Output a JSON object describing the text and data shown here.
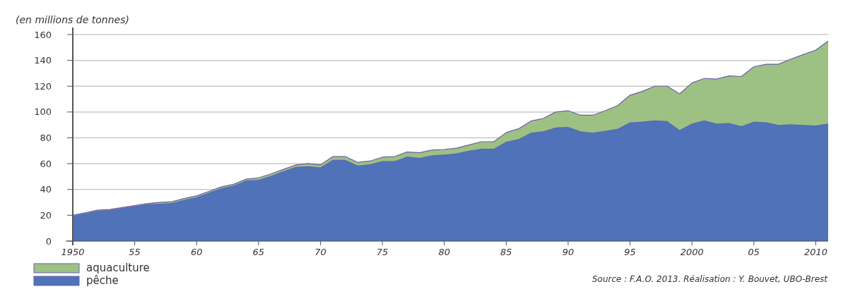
{
  "chart_data": {
    "type": "area",
    "stacked": true,
    "ylabel": "(en millions de tonnes)",
    "x": [
      1950,
      1951,
      1952,
      1953,
      1954,
      1955,
      1956,
      1957,
      1958,
      1959,
      1960,
      1961,
      1962,
      1963,
      1964,
      1965,
      1966,
      1967,
      1968,
      1969,
      1970,
      1971,
      1972,
      1973,
      1974,
      1975,
      1976,
      1977,
      1978,
      1979,
      1980,
      1981,
      1982,
      1983,
      1984,
      1985,
      1986,
      1987,
      1988,
      1989,
      1990,
      1991,
      1992,
      1993,
      1994,
      1995,
      1996,
      1997,
      1998,
      1999,
      2000,
      2001,
      2002,
      2003,
      2004,
      2005,
      2006,
      2007,
      2008,
      2009,
      2010,
      2011
    ],
    "series": [
      {
        "name": "pêche",
        "color": "#4f72b8",
        "values": [
          19.5,
          21.5,
          23.5,
          24,
          25.5,
          27,
          28.5,
          29,
          29.5,
          32,
          34,
          37.5,
          41,
          43,
          47,
          47.5,
          50.5,
          54,
          57.5,
          58,
          57,
          63,
          63,
          58.5,
          59.5,
          62,
          62,
          65.5,
          64.5,
          66.5,
          67,
          68,
          70,
          71.5,
          71.5,
          77,
          79,
          84,
          85,
          88,
          88.5,
          85,
          84,
          85.5,
          87,
          92,
          92.5,
          93.5,
          93,
          86,
          91,
          93.5,
          91,
          91.5,
          89,
          92.5,
          92,
          90,
          90.5,
          90,
          89.5,
          91
        ]
      },
      {
        "name": "aquaculture",
        "color": "#9dc183",
        "values": [
          0.5,
          0.5,
          0.5,
          0.5,
          0.5,
          0.5,
          0.5,
          1,
          1,
          1,
          1,
          1,
          1,
          1,
          1,
          1.5,
          1.5,
          1.5,
          1.5,
          2,
          2,
          2.5,
          2.5,
          2.5,
          2.5,
          3,
          3.5,
          3.5,
          4,
          4,
          4,
          4,
          4.5,
          5.5,
          5.5,
          7,
          8,
          9,
          10,
          12,
          12.5,
          12.5,
          13.5,
          15.5,
          18,
          21,
          23.5,
          26.5,
          27,
          28,
          31.5,
          32.5,
          34.5,
          36.5,
          38.5,
          42.5,
          45,
          47,
          50.5,
          54.5,
          58.5,
          64
        ]
      }
    ],
    "xlim": [
      1950,
      2011
    ],
    "xticks": [
      1950,
      {
        "value": 1955,
        "label": "55"
      },
      {
        "value": 1960,
        "label": "60"
      },
      {
        "value": 1965,
        "label": "65"
      },
      {
        "value": 1970,
        "label": "70"
      },
      {
        "value": 1975,
        "label": "75"
      },
      {
        "value": 1980,
        "label": "80"
      },
      {
        "value": 1985,
        "label": "85"
      },
      {
        "value": 1990,
        "label": "90"
      },
      {
        "value": 1995,
        "label": "95"
      },
      2000,
      {
        "value": 2005,
        "label": "05"
      },
      2010
    ],
    "ylim": [
      0,
      160
    ],
    "yticks": [
      0,
      20,
      40,
      60,
      80,
      100,
      120,
      140,
      160
    ],
    "grid": "y",
    "legend": "bottom left",
    "annotations": [
      "Source : F.A.O. 2013. Réalisation : Y. Bouvet, UBO-Brest"
    ]
  }
}
